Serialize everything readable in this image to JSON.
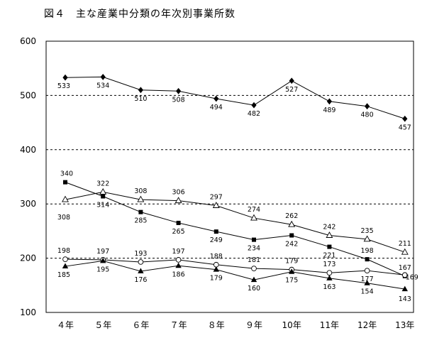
{
  "chart_data": {
    "type": "line",
    "title": "図４　主な産業中分類の年次別事業所数",
    "categories": [
      "４年",
      "５年",
      "６年",
      "７年",
      "８年",
      "９年",
      "10年",
      "11年",
      "12年",
      "13年"
    ],
    "ylim": [
      100,
      600
    ],
    "yticks": [
      100,
      200,
      300,
      400,
      500,
      600
    ],
    "grid": "dashed horizontal at 200, 300, 400, 500",
    "legend": "none",
    "series": [
      {
        "marker": "diamond-filled",
        "values": [
          533,
          534,
          510,
          508,
          494,
          482,
          527,
          489,
          480,
          457
        ],
        "labels": [
          "533",
          "534",
          "510",
          "508",
          "494",
          "482",
          "527",
          "489",
          "480",
          "457"
        ]
      },
      {
        "marker": "square-filled",
        "values": [
          340,
          314,
          285,
          265,
          249,
          234,
          242,
          221,
          198,
          167
        ],
        "labels": [
          "340",
          "314",
          "285",
          "265",
          "249",
          "234",
          "242",
          "221",
          "198",
          "167"
        ]
      },
      {
        "marker": "triangle-open",
        "values": [
          308,
          322,
          308,
          306,
          297,
          274,
          262,
          242,
          235,
          211
        ],
        "labels": [
          "308",
          "322",
          "308",
          "306",
          "297",
          "274",
          "262",
          "242",
          "235",
          "211"
        ]
      },
      {
        "marker": "circle-open",
        "values": [
          198,
          197,
          193,
          197,
          188,
          181,
          179,
          173,
          177,
          169
        ],
        "labels": [
          "198",
          "197",
          "193",
          "197",
          "188",
          "181",
          "179",
          "173",
          "177",
          "169"
        ]
      },
      {
        "marker": "triangle-filled",
        "values": [
          185,
          195,
          176,
          186,
          179,
          160,
          175,
          163,
          154,
          143
        ],
        "labels": [
          "185",
          "195",
          "176",
          "186",
          "179",
          "160",
          "175",
          "163",
          "154",
          "143"
        ]
      }
    ]
  }
}
